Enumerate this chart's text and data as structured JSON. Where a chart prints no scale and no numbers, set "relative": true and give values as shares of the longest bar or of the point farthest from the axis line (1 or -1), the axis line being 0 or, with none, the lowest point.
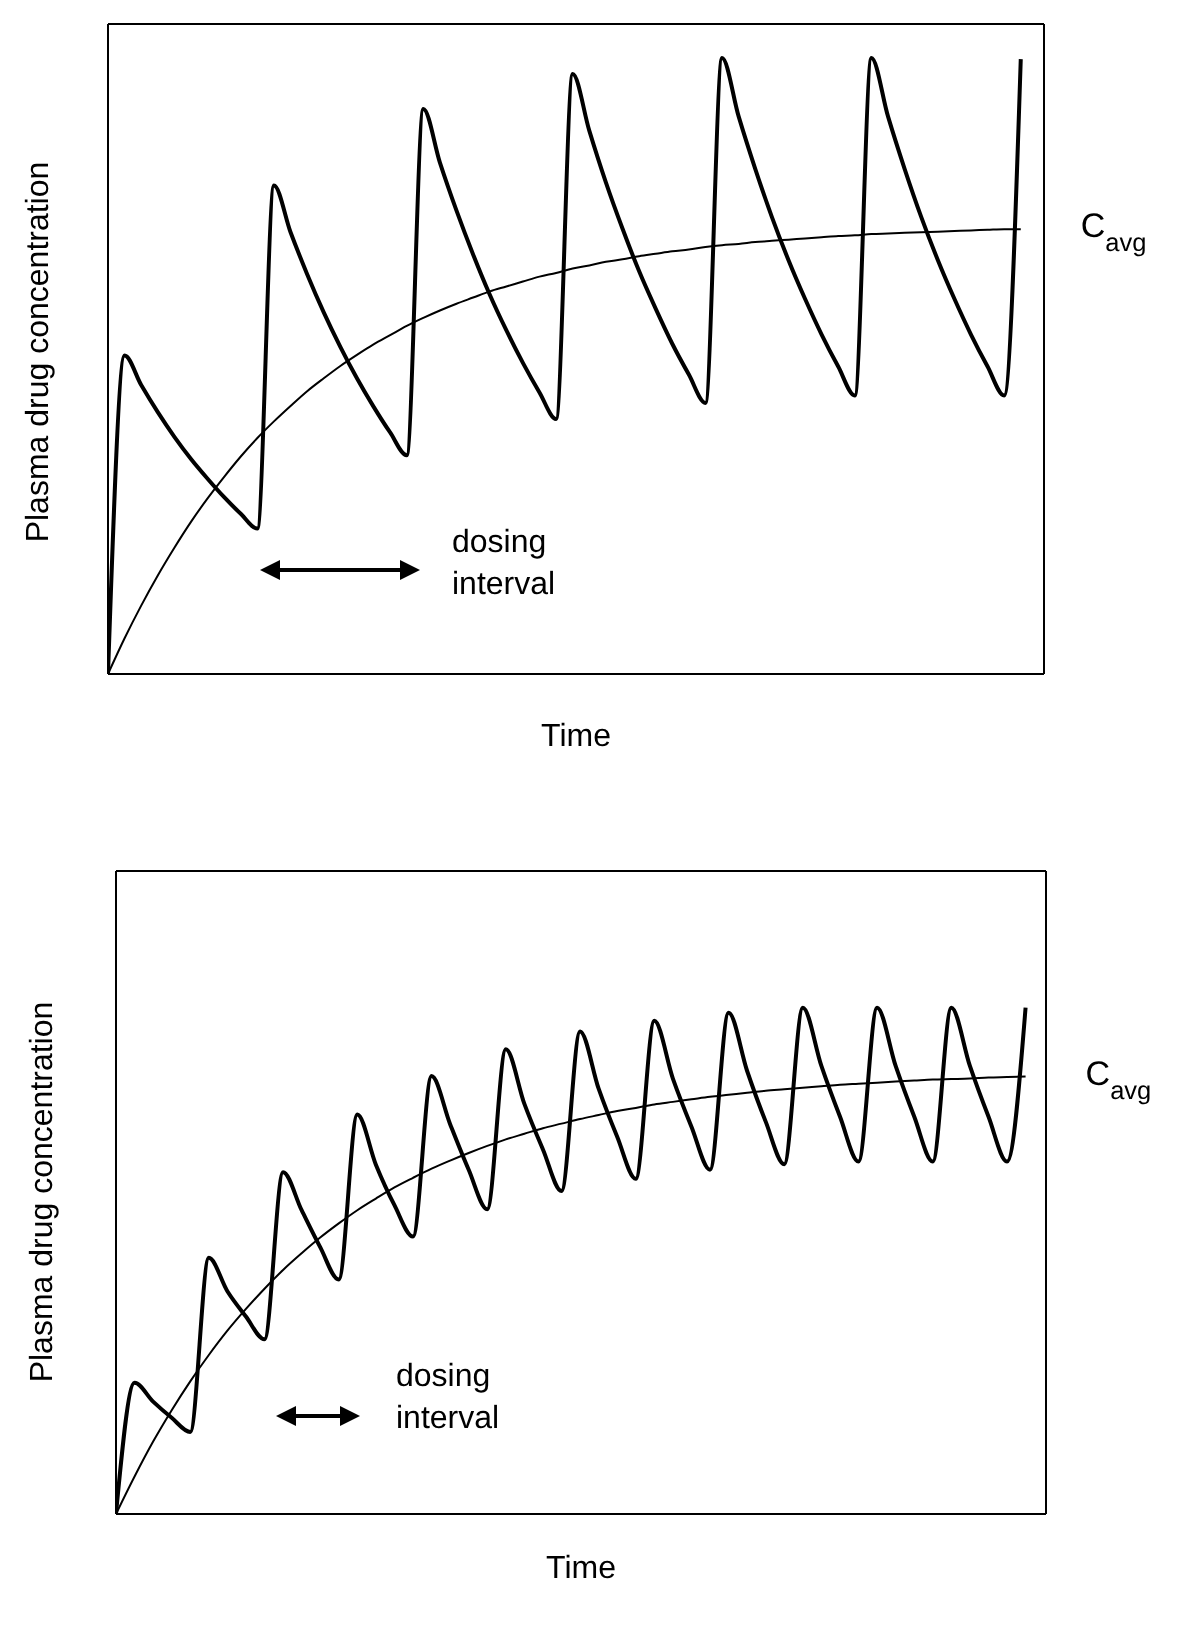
{
  "chart_data": [
    {
      "type": "line",
      "relative": true,
      "xlabel": "Time",
      "ylabel": "Plasma drug concentration",
      "categories": [
        null,
        null,
        null,
        null,
        null,
        null,
        null,
        null,
        null,
        null,
        null,
        null,
        null,
        null,
        null,
        null,
        null,
        null,
        null,
        null,
        null,
        null,
        null,
        null,
        null,
        null,
        null,
        null,
        null,
        null,
        null,
        null,
        null,
        null,
        null,
        null,
        null,
        null,
        null,
        null,
        null,
        null,
        null,
        null,
        null,
        null,
        null,
        null,
        null,
        null,
        null,
        null,
        null,
        null,
        null,
        null
      ],
      "series": [
        {
          "color": "#000000",
          "values": [
            0,
            0.517,
            0.469,
            0.425,
            0.385,
            0.349,
            0.317,
            0.287,
            0.26,
            0.236,
            0.793,
            0.717,
            0.649,
            0.587,
            0.531,
            0.48,
            0.434,
            0.392,
            0.355,
            0.917,
            0.83,
            0.752,
            0.681,
            0.616,
            0.558,
            0.505,
            0.457,
            0.414,
            0.974,
            0.882,
            0.798,
            0.723,
            0.654,
            0.593,
            0.536,
            0.486,
            0.44,
            1,
            0.905,
            0.82,
            0.742,
            0.672,
            0.609,
            0.551,
            0.499,
            0.452,
            1,
            0.905,
            0.82,
            0.742,
            0.672,
            0.609,
            0.551,
            0.499,
            0.452,
            0.998
          ]
        },
        {
          "color": "#000000",
          "values": [
            0,
            0.058,
            0.111,
            0.16,
            0.205,
            0.247,
            0.285,
            0.32,
            0.353,
            0.383,
            0.41,
            0.435,
            0.459,
            0.48,
            0.5,
            0.518,
            0.535,
            0.55,
            0.565,
            0.578,
            0.59,
            0.601,
            0.611,
            0.621,
            0.629,
            0.637,
            0.645,
            0.651,
            0.658,
            0.663,
            0.669,
            0.673,
            0.678,
            0.682,
            0.686,
            0.689,
            0.693,
            0.696,
            0.698,
            0.701,
            0.703,
            0.705,
            0.707,
            0.709,
            0.711,
            0.712,
            0.714,
            0.715,
            0.716,
            0.717,
            0.718,
            0.719,
            0.72,
            0.721,
            0.722,
            0.722
          ]
        }
      ],
      "annotations": [
        "dosing interval",
        "C$_{avg}$"
      ],
      "marker": "none",
      "line_style": "solid"
    },
    {
      "type": "line",
      "relative": true,
      "xlabel": "Time",
      "ylabel": "Plasma drug concentration",
      "categories": [
        null,
        null,
        null,
        null,
        null,
        null,
        null,
        null,
        null,
        null,
        null,
        null,
        null,
        null,
        null,
        null,
        null,
        null,
        null,
        null,
        null,
        null,
        null,
        null,
        null,
        null,
        null,
        null,
        null,
        null,
        null,
        null,
        null,
        null,
        null,
        null,
        null,
        null,
        null,
        null,
        null,
        null,
        null,
        null,
        null,
        null,
        null,
        null,
        null,
        null
      ],
      "series": [
        {
          "color": "#000000",
          "values": [
            0,
            0.259,
            0.222,
            0.19,
            0.162,
            0.506,
            0.44,
            0.39,
            0.345,
            0.675,
            0.6,
            0.527,
            0.463,
            0.789,
            0.69,
            0.61,
            0.548,
            0.865,
            0.77,
            0.68,
            0.602,
            0.918,
            0.81,
            0.72,
            0.638,
            0.953,
            0.84,
            0.745,
            0.662,
            0.974,
            0.86,
            0.765,
            0.68,
            0.99,
            0.875,
            0.775,
            0.691,
            1,
            0.885,
            0.785,
            0.696,
            1,
            0.885,
            0.785,
            0.696,
            1,
            0.885,
            0.785,
            0.696,
            1
          ]
        },
        {
          "color": "#000000",
          "values": [
            0,
            0.074,
            0.143,
            0.205,
            0.262,
            0.314,
            0.362,
            0.405,
            0.445,
            0.482,
            0.515,
            0.546,
            0.574,
            0.6,
            0.623,
            0.645,
            0.664,
            0.682,
            0.698,
            0.713,
            0.727,
            0.74,
            0.751,
            0.762,
            0.771,
            0.78,
            0.788,
            0.796,
            0.802,
            0.809,
            0.814,
            0.819,
            0.824,
            0.828,
            0.832,
            0.836,
            0.839,
            0.842,
            0.845,
            0.848,
            0.85,
            0.852,
            0.854,
            0.856,
            0.858,
            0.859,
            0.86,
            0.862,
            0.863,
            0.864
          ]
        }
      ],
      "annotations": [
        "dosing interval",
        "C$_{avg}$"
      ],
      "marker": "none",
      "line_style": "solid"
    }
  ]
}
